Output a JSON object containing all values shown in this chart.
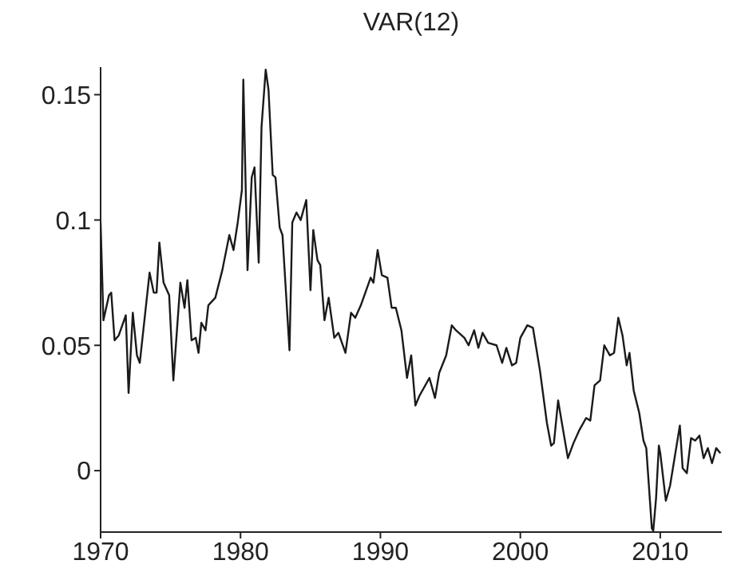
{
  "chart_data": {
    "type": "line",
    "title": "VAR(12)",
    "x": [
      1970.0,
      1970.2,
      1970.6,
      1970.76,
      1971.0,
      1971.3,
      1971.8,
      1972.0,
      1972.3,
      1972.6,
      1972.8,
      1973.5,
      1973.8,
      1974.0,
      1974.2,
      1974.5,
      1974.9,
      1975.2,
      1975.7,
      1976.0,
      1976.2,
      1976.5,
      1976.8,
      1977.0,
      1977.2,
      1977.5,
      1977.7,
      1978.2,
      1978.7,
      1979.2,
      1979.5,
      1979.8,
      1980.1,
      1980.2,
      1980.5,
      1980.8,
      1981.0,
      1981.3,
      1981.5,
      1981.8,
      1982.0,
      1982.3,
      1982.5,
      1982.8,
      1983.0,
      1983.5,
      1983.7,
      1984.0,
      1984.3,
      1984.7,
      1985.0,
      1985.2,
      1985.5,
      1985.7,
      1986.0,
      1986.3,
      1986.7,
      1987.0,
      1987.5,
      1987.9,
      1988.2,
      1988.6,
      1989.3,
      1989.5,
      1989.8,
      1990.1,
      1990.5,
      1990.8,
      1991.1,
      1991.5,
      1991.9,
      1992.2,
      1992.5,
      1992.8,
      1993.5,
      1993.9,
      1994.2,
      1994.7,
      1995.1,
      1995.4,
      1996.0,
      1996.3,
      1996.7,
      1997.0,
      1997.3,
      1997.7,
      1998.3,
      1998.7,
      1999.0,
      1999.4,
      1999.7,
      2000.0,
      2000.5,
      2000.9,
      2001.4,
      2001.9,
      2002.2,
      2002.4,
      2002.7,
      2003.0,
      2003.4,
      2003.8,
      2004.2,
      2004.7,
      2005.0,
      2005.3,
      2005.7,
      2006.0,
      2006.4,
      2006.7,
      2007.0,
      2007.3,
      2007.6,
      2007.8,
      2008.1,
      2008.5,
      2008.8,
      2009.0,
      2009.4,
      2009.5,
      2009.7,
      2009.9,
      2010.0,
      2010.4,
      2010.7,
      2011.4,
      2011.6,
      2011.9,
      2012.2,
      2012.5,
      2012.8,
      2013.1,
      2013.4,
      2013.7,
      2014.0,
      2014.3
    ],
    "series": [
      {
        "color": "#1a1a1a",
        "values": [
          0.099,
          0.06,
          0.07,
          0.071,
          0.052,
          0.054,
          0.062,
          0.031,
          0.063,
          0.046,
          0.043,
          0.079,
          0.071,
          0.071,
          0.091,
          0.075,
          0.07,
          0.036,
          0.075,
          0.065,
          0.076,
          0.052,
          0.053,
          0.047,
          0.059,
          0.056,
          0.066,
          0.069,
          0.08,
          0.094,
          0.088,
          0.099,
          0.112,
          0.156,
          0.08,
          0.117,
          0.121,
          0.083,
          0.137,
          0.16,
          0.152,
          0.118,
          0.117,
          0.097,
          0.094,
          0.048,
          0.099,
          0.103,
          0.1,
          0.108,
          0.072,
          0.096,
          0.084,
          0.082,
          0.06,
          0.069,
          0.053,
          0.055,
          0.047,
          0.063,
          0.061,
          0.066,
          0.077,
          0.075,
          0.088,
          0.078,
          0.077,
          0.065,
          0.065,
          0.056,
          0.037,
          0.046,
          0.026,
          0.03,
          0.037,
          0.029,
          0.039,
          0.046,
          0.058,
          0.056,
          0.053,
          0.05,
          0.056,
          0.049,
          0.055,
          0.051,
          0.05,
          0.043,
          0.049,
          0.042,
          0.043,
          0.053,
          0.058,
          0.057,
          0.04,
          0.019,
          0.01,
          0.011,
          0.028,
          0.018,
          0.005,
          0.011,
          0.016,
          0.021,
          0.02,
          0.034,
          0.036,
          0.05,
          0.046,
          0.047,
          0.061,
          0.054,
          0.042,
          0.047,
          0.032,
          0.023,
          0.012,
          0.009,
          -0.023,
          -0.024,
          -0.011,
          0.01,
          0.007,
          -0.012,
          -0.006,
          0.018,
          0.001,
          -0.001,
          0.013,
          0.012,
          0.014,
          0.005,
          0.009,
          0.003,
          0.009,
          0.007
        ]
      }
    ],
    "xlim": [
      1970,
      2014.4
    ],
    "xticks": [
      1970,
      1980,
      1990,
      2000,
      2010
    ],
    "ylim": [
      -0.0245,
      0.161
    ],
    "yticks": [
      0,
      0.05,
      0.1,
      0.15
    ],
    "grid": false,
    "legend": false,
    "marker": "none",
    "line_style": "solid"
  }
}
